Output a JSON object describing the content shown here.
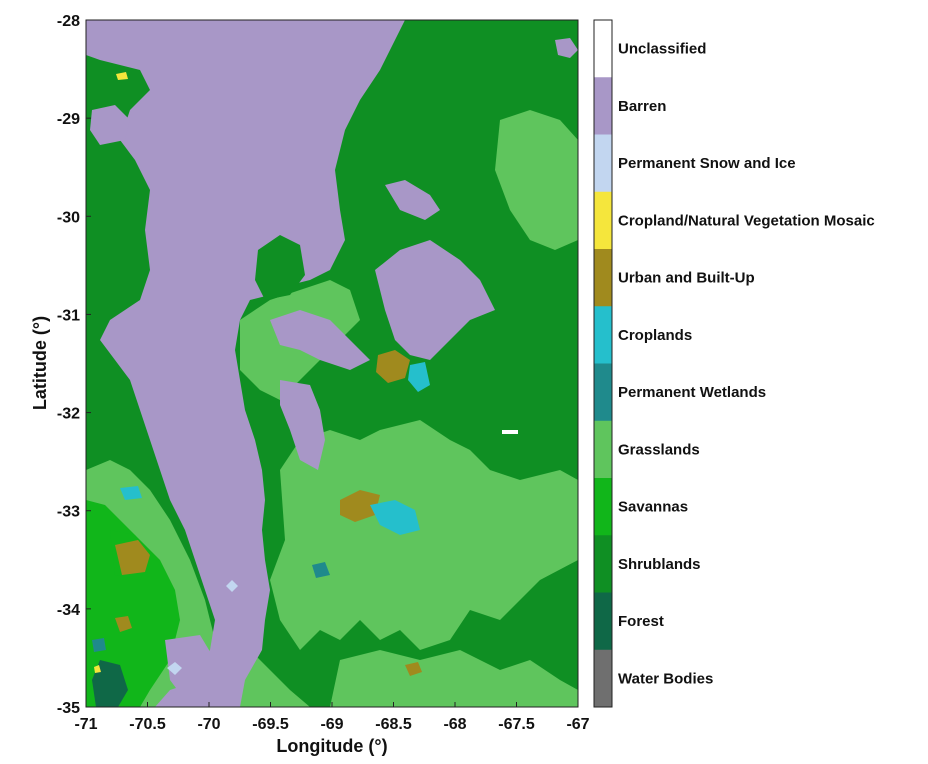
{
  "chart_data": {
    "type": "heatmap",
    "title": "",
    "xlabel": "Longitude (°)",
    "ylabel": "Latitude (°)",
    "xlim": [
      -71,
      -67
    ],
    "ylim": [
      -35,
      -28
    ],
    "x_ticks": [
      -71,
      -70.5,
      -70,
      -69.5,
      -69,
      -68.5,
      -68,
      -67.5,
      -67
    ],
    "x_tick_labels": [
      "-71",
      "-70.5",
      "-70",
      "-69.5",
      "-69",
      "-68.5",
      "-68",
      "-67.5",
      "-67"
    ],
    "y_ticks": [
      -28,
      -29,
      -30,
      -31,
      -32,
      -33,
      -34,
      -35
    ],
    "y_tick_labels": [
      "-28",
      "-29",
      "-30",
      "-31",
      "-32",
      "-33",
      "-34",
      "-35"
    ],
    "grid": false,
    "legend_position": "right colorbar",
    "classes": [
      {
        "name": "Unclassified",
        "color": "#ffffff"
      },
      {
        "name": "Barren",
        "color": "#a897c7"
      },
      {
        "name": "Permanent Snow and Ice",
        "color": "#c2d6f0"
      },
      {
        "name": "Cropland/Natural Vegetation Mosaic",
        "color": "#f5e63c"
      },
      {
        "name": "Urban and Built-Up",
        "color": "#a08a1e"
      },
      {
        "name": "Croplands",
        "color": "#25bfcc"
      },
      {
        "name": "Permanent Wetlands",
        "color": "#1f8a8c"
      },
      {
        "name": "Grasslands",
        "color": "#5fc55d"
      },
      {
        "name": "Savannas",
        "color": "#11b61a"
      },
      {
        "name": "Shrublands",
        "color": "#0f8f23"
      },
      {
        "name": "Forest",
        "color": "#0f6847"
      },
      {
        "name": "Water Bodies",
        "color": "#6f6f6f"
      }
    ]
  }
}
